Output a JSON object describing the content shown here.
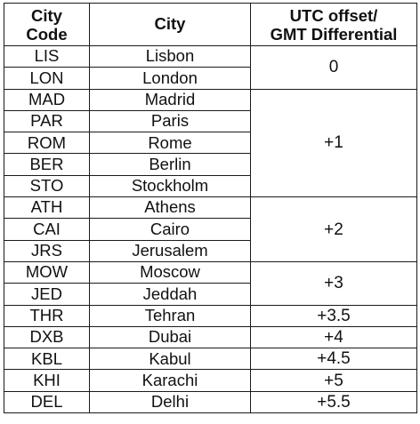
{
  "table": {
    "headers": {
      "code": [
        "City",
        "Code"
      ],
      "city": "City",
      "offset": [
        "UTC offset/",
        "GMT Differential"
      ]
    },
    "rows": [
      {
        "code": "LIS",
        "city": "Lisbon"
      },
      {
        "code": "LON",
        "city": "London"
      },
      {
        "code": "MAD",
        "city": "Madrid"
      },
      {
        "code": "PAR",
        "city": "Paris"
      },
      {
        "code": "ROM",
        "city": "Rome"
      },
      {
        "code": "BER",
        "city": "Berlin"
      },
      {
        "code": "STO",
        "city": "Stockholm"
      },
      {
        "code": "ATH",
        "city": "Athens"
      },
      {
        "code": "CAI",
        "city": "Cairo"
      },
      {
        "code": "JRS",
        "city": "Jerusalem"
      },
      {
        "code": "MOW",
        "city": "Moscow"
      },
      {
        "code": "JED",
        "city": "Jeddah"
      },
      {
        "code": "THR",
        "city": "Tehran"
      },
      {
        "code": "DXB",
        "city": "Dubai"
      },
      {
        "code": "KBL",
        "city": "Kabul"
      },
      {
        "code": "KHI",
        "city": "Karachi"
      },
      {
        "code": "DEL",
        "city": "Delhi"
      }
    ],
    "offsets": [
      {
        "value": "0",
        "rows": 2
      },
      {
        "value": "+1",
        "rows": 5
      },
      {
        "value": "+2",
        "rows": 3
      },
      {
        "value": "+3",
        "rows": 2
      },
      {
        "value": "+3.5",
        "rows": 1
      },
      {
        "value": "+4",
        "rows": 1
      },
      {
        "value": "+4.5",
        "rows": 1
      },
      {
        "value": "+5",
        "rows": 1
      },
      {
        "value": "+5.5",
        "rows": 1
      }
    ]
  }
}
